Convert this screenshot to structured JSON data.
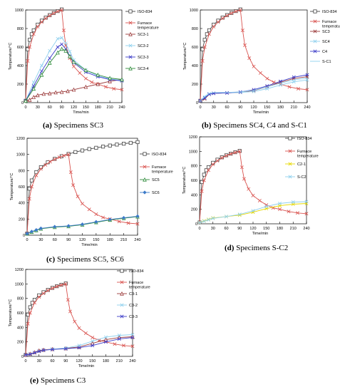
{
  "captions": [
    {
      "letter": "(a)",
      "text": "Specimens SC3"
    },
    {
      "letter": "(b)",
      "text": "Specimens SC4, C4 and S-C1"
    },
    {
      "letter": "(c)",
      "text": "Specimens SC5, SC6"
    },
    {
      "letter": "(d)",
      "text": "Specimens S-C2"
    },
    {
      "letter": "(e)",
      "text": "Specimens C3"
    }
  ],
  "colors": {
    "iso": "#444444",
    "furnace": "#d9534f",
    "series3": "#9b3a3a",
    "series4": "#8fd0ee",
    "series5": "#3c3cc8",
    "series6": "#2e8b3a",
    "yellow": "#e6d800"
  },
  "chart_data": [
    {
      "id": "a",
      "type": "line",
      "xlabel": "Time/min",
      "ylabel": "Temperature/°C",
      "xlim": [
        0,
        240
      ],
      "ylim": [
        0,
        1000
      ],
      "xticks": [
        0,
        30,
        60,
        90,
        120,
        150,
        180,
        210,
        240
      ],
      "yticks": [
        0,
        200,
        400,
        600,
        800,
        1000
      ],
      "legend": "right",
      "series": [
        {
          "name": "ISO-834",
          "color": "#444444",
          "marker": "square",
          "x": [
            0,
            5,
            10,
            15,
            20,
            30,
            40,
            50,
            60,
            70,
            80,
            90
          ],
          "y": [
            20,
            576,
            678,
            739,
            781,
            842,
            885,
            918,
            945,
            968,
            988,
            1006
          ]
        },
        {
          "name": "Furnace temperature",
          "color": "#d9534f",
          "marker": "x",
          "x": [
            0,
            5,
            10,
            20,
            30,
            40,
            50,
            60,
            70,
            80,
            90,
            95,
            100,
            110,
            120,
            135,
            150,
            165,
            180,
            200,
            220,
            240
          ],
          "y": [
            20,
            450,
            600,
            740,
            820,
            870,
            910,
            940,
            965,
            985,
            1000,
            780,
            620,
            480,
            390,
            320,
            260,
            220,
            200,
            170,
            150,
            140
          ]
        },
        {
          "name": "SC3-1",
          "color": "#9b3a3a",
          "marker": "triangle",
          "x": [
            0,
            10,
            20,
            30,
            45,
            60,
            75,
            90,
            105,
            120,
            150,
            180,
            210,
            240
          ],
          "y": [
            20,
            30,
            60,
            80,
            95,
            100,
            110,
            115,
            125,
            140,
            170,
            200,
            230,
            250
          ]
        },
        {
          "name": "SC3-2",
          "color": "#8fd0ee",
          "marker": "x",
          "x": [
            0,
            20,
            40,
            60,
            80,
            90,
            100,
            110,
            120,
            150,
            180,
            210,
            240
          ],
          "y": [
            20,
            220,
            400,
            560,
            690,
            700,
            640,
            550,
            460,
            350,
            290,
            255,
            240
          ]
        },
        {
          "name": "SC3-3",
          "color": "#3c3cc8",
          "marker": "x",
          "x": [
            0,
            20,
            40,
            60,
            80,
            90,
            100,
            110,
            120,
            150,
            180,
            210,
            240
          ],
          "y": [
            20,
            180,
            340,
            480,
            600,
            630,
            580,
            500,
            430,
            330,
            280,
            250,
            235
          ]
        },
        {
          "name": "SC3-4",
          "color": "#2e8b3a",
          "marker": "triangle",
          "x": [
            0,
            20,
            40,
            60,
            80,
            90,
            100,
            110,
            120,
            150,
            180,
            210,
            240
          ],
          "y": [
            20,
            150,
            300,
            430,
            540,
            580,
            560,
            500,
            440,
            350,
            300,
            265,
            250
          ]
        }
      ]
    },
    {
      "id": "b",
      "type": "line",
      "xlabel": "Time/min",
      "ylabel": "Temperature/°C",
      "xlim": [
        0,
        240
      ],
      "ylim": [
        0,
        1000
      ],
      "xticks": [
        0,
        30,
        60,
        90,
        120,
        150,
        180,
        210,
        240
      ],
      "yticks": [
        0,
        200,
        400,
        600,
        800,
        1000
      ],
      "legend": "right",
      "series": [
        {
          "name": "ISO-834",
          "color": "#444444",
          "marker": "square",
          "x": [
            0,
            5,
            10,
            15,
            20,
            30,
            40,
            50,
            60,
            70,
            80,
            90
          ],
          "y": [
            20,
            576,
            678,
            739,
            781,
            842,
            885,
            918,
            945,
            968,
            988,
            1006
          ]
        },
        {
          "name": "Furnace temperature",
          "color": "#d9534f",
          "marker": "x",
          "x": [
            0,
            5,
            10,
            20,
            30,
            40,
            50,
            60,
            70,
            80,
            90,
            95,
            100,
            110,
            120,
            135,
            150,
            165,
            180,
            200,
            220,
            240
          ],
          "y": [
            20,
            450,
            600,
            740,
            820,
            870,
            910,
            940,
            965,
            985,
            1000,
            780,
            620,
            480,
            390,
            320,
            260,
            220,
            200,
            170,
            150,
            140
          ]
        },
        {
          "name": "SC3",
          "color": "#9b3a3a",
          "marker": "x",
          "x": [
            0,
            10,
            20,
            30,
            60,
            90,
            120,
            150,
            180,
            210,
            240
          ],
          "y": [
            20,
            40,
            90,
            100,
            105,
            110,
            130,
            170,
            220,
            260,
            280
          ]
        },
        {
          "name": "SC4",
          "color": "#8fd0ee",
          "marker": "x",
          "x": [
            0,
            10,
            20,
            30,
            60,
            90,
            120,
            150,
            180,
            210,
            240
          ],
          "y": [
            20,
            60,
            95,
            100,
            105,
            110,
            120,
            150,
            190,
            225,
            245
          ]
        },
        {
          "name": "C4",
          "color": "#3c3cc8",
          "marker": "x",
          "x": [
            0,
            10,
            20,
            30,
            60,
            90,
            120,
            150,
            180,
            210,
            240
          ],
          "y": [
            20,
            50,
            90,
            100,
            105,
            115,
            140,
            180,
            230,
            275,
            300
          ]
        },
        {
          "name": "S-C1",
          "color": "#8fd0ee",
          "marker": "none",
          "x": [
            0,
            10,
            20,
            30,
            60,
            90,
            120,
            150,
            180,
            210,
            240
          ],
          "y": [
            20,
            70,
            100,
            110,
            110,
            115,
            135,
            170,
            210,
            245,
            265
          ]
        }
      ]
    },
    {
      "id": "c",
      "type": "line",
      "xlabel": "Time/min",
      "ylabel": "Temperature/°C",
      "xlim": [
        0,
        240
      ],
      "ylim": [
        0,
        1200
      ],
      "xticks": [
        0,
        30,
        60,
        90,
        120,
        150,
        180,
        210,
        240
      ],
      "yticks": [
        0,
        200,
        400,
        600,
        800,
        1000,
        1200
      ],
      "legend": "right",
      "series": [
        {
          "name": "ISO-834",
          "color": "#444444",
          "marker": "square",
          "x": [
            0,
            5,
            10,
            20,
            30,
            45,
            60,
            75,
            90,
            105,
            120,
            135,
            150,
            165,
            180,
            195,
            210,
            225,
            240
          ],
          "y": [
            20,
            576,
            678,
            781,
            842,
            902,
            945,
            978,
            1006,
            1029,
            1049,
            1067,
            1082,
            1097,
            1110,
            1122,
            1133,
            1143,
            1153
          ]
        },
        {
          "name": "Furnace temperature",
          "color": "#d9534f",
          "marker": "x",
          "x": [
            0,
            5,
            10,
            20,
            30,
            40,
            50,
            60,
            70,
            80,
            90,
            95,
            100,
            110,
            120,
            135,
            150,
            165,
            180,
            200,
            220,
            240
          ],
          "y": [
            20,
            450,
            600,
            740,
            820,
            870,
            910,
            940,
            965,
            985,
            1000,
            780,
            620,
            480,
            390,
            320,
            260,
            220,
            200,
            170,
            150,
            140
          ]
        },
        {
          "name": "SC5",
          "color": "#2e8b3a",
          "marker": "triangle",
          "x": [
            0,
            10,
            20,
            30,
            60,
            90,
            120,
            150,
            180,
            210,
            240
          ],
          "y": [
            20,
            40,
            60,
            80,
            100,
            110,
            130,
            160,
            190,
            210,
            230
          ]
        },
        {
          "name": "SC6",
          "color": "#3c7ac8",
          "marker": "diamond",
          "x": [
            0,
            10,
            20,
            30,
            60,
            90,
            120,
            150,
            180,
            210,
            240
          ],
          "y": [
            20,
            45,
            65,
            85,
            105,
            115,
            135,
            165,
            195,
            215,
            235
          ]
        }
      ]
    },
    {
      "id": "d",
      "type": "line",
      "xlabel": "Time/min",
      "ylabel": "Temperature/°C",
      "xlim": [
        0,
        240
      ],
      "ylim": [
        0,
        1200
      ],
      "xticks": [
        0,
        30,
        60,
        90,
        120,
        150,
        180,
        210,
        240
      ],
      "yticks": [
        0,
        200,
        400,
        600,
        800,
        1000,
        1200
      ],
      "legend": "right",
      "series": [
        {
          "name": "ISO-834",
          "color": "#444444",
          "marker": "square",
          "x": [
            0,
            5,
            10,
            15,
            20,
            30,
            40,
            50,
            60,
            70,
            80,
            90
          ],
          "y": [
            20,
            576,
            678,
            739,
            781,
            842,
            885,
            918,
            945,
            968,
            988,
            1006
          ]
        },
        {
          "name": "Furnace temperature",
          "color": "#d9534f",
          "marker": "x",
          "x": [
            0,
            5,
            10,
            20,
            30,
            40,
            50,
            60,
            70,
            80,
            90,
            95,
            100,
            110,
            120,
            135,
            150,
            165,
            180,
            200,
            220,
            240
          ],
          "y": [
            20,
            450,
            600,
            740,
            820,
            870,
            910,
            940,
            965,
            985,
            1000,
            780,
            620,
            480,
            390,
            320,
            260,
            220,
            200,
            170,
            150,
            140
          ]
        },
        {
          "name": "C2-1",
          "color": "#e6d800",
          "marker": "x",
          "x": [
            0,
            10,
            20,
            30,
            60,
            90,
            120,
            150,
            180,
            210,
            240
          ],
          "y": [
            20,
            40,
            60,
            80,
            100,
            120,
            160,
            210,
            250,
            270,
            280
          ]
        },
        {
          "name": "S-C2",
          "color": "#8fd0ee",
          "marker": "x",
          "x": [
            0,
            10,
            20,
            30,
            60,
            90,
            120,
            150,
            180,
            210,
            240
          ],
          "y": [
            20,
            35,
            55,
            75,
            100,
            130,
            180,
            240,
            280,
            300,
            305
          ]
        }
      ]
    },
    {
      "id": "e",
      "type": "line",
      "xlabel": "Time/min",
      "ylabel": "Temperature/°C",
      "xlim": [
        0,
        240
      ],
      "ylim": [
        0,
        1200
      ],
      "xticks": [
        0,
        30,
        60,
        90,
        120,
        150,
        180,
        210,
        240
      ],
      "yticks": [
        0,
        200,
        400,
        600,
        800,
        1000,
        1200
      ],
      "legend": "right",
      "series": [
        {
          "name": "ISO-834",
          "color": "#444444",
          "marker": "square",
          "x": [
            0,
            5,
            10,
            15,
            20,
            30,
            40,
            50,
            60,
            70,
            80,
            90
          ],
          "y": [
            20,
            576,
            678,
            739,
            781,
            842,
            885,
            918,
            945,
            968,
            988,
            1006
          ]
        },
        {
          "name": "Furnace temperature",
          "color": "#d9534f",
          "marker": "x",
          "x": [
            0,
            5,
            10,
            20,
            30,
            40,
            50,
            60,
            70,
            80,
            90,
            95,
            100,
            110,
            120,
            135,
            150,
            165,
            180,
            200,
            220,
            240
          ],
          "y": [
            20,
            450,
            600,
            740,
            820,
            870,
            910,
            940,
            965,
            985,
            1000,
            780,
            620,
            480,
            390,
            320,
            260,
            220,
            200,
            170,
            150,
            140
          ]
        },
        {
          "name": "C3-1",
          "color": "#9b3a3a",
          "marker": "triangle",
          "x": [
            0,
            10,
            20,
            30,
            40,
            60,
            90,
            120,
            150,
            180,
            210,
            240
          ],
          "y": [
            20,
            35,
            55,
            80,
            90,
            100,
            110,
            130,
            180,
            230,
            260,
            270
          ]
        },
        {
          "name": "C3-2",
          "color": "#8fd0ee",
          "marker": "x",
          "x": [
            0,
            10,
            20,
            30,
            40,
            60,
            90,
            120,
            150,
            180,
            210,
            240
          ],
          "y": [
            20,
            30,
            50,
            70,
            85,
            100,
            115,
            150,
            210,
            265,
            290,
            300
          ]
        },
        {
          "name": "C3-3",
          "color": "#3c3cc8",
          "marker": "x",
          "x": [
            0,
            10,
            20,
            30,
            40,
            60,
            90,
            120,
            150,
            180,
            210,
            240
          ],
          "y": [
            20,
            30,
            50,
            70,
            85,
            95,
            105,
            120,
            150,
            200,
            240,
            260
          ]
        }
      ]
    }
  ]
}
